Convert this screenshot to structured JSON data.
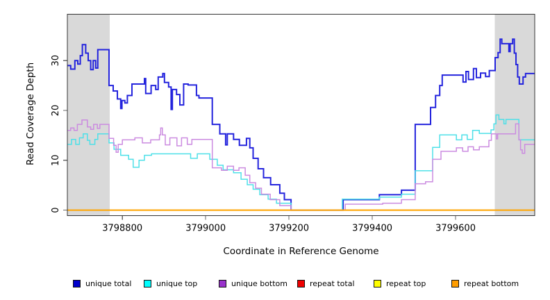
{
  "chart_data": {
    "type": "line",
    "style": "step-after",
    "title": "",
    "xlabel": "Coordinate in Reference Genome",
    "ylabel": "Read Coverage Depth",
    "xlim": [
      3798668,
      3799790
    ],
    "ylim": [
      -1.1,
      39.3
    ],
    "xticks": [
      3798800,
      3799000,
      3799200,
      3799400,
      3799600
    ],
    "yticks": [
      0,
      10,
      20,
      30
    ],
    "grid": false,
    "legend_position": "bottom",
    "box_color": "#333333",
    "tick_color": "#666666",
    "shade_color": "#d9d9d9",
    "shaded_regions": [
      {
        "x0": 3798668,
        "x1": 3798770
      },
      {
        "x0": 3799694,
        "x1": 3799790
      }
    ],
    "series": [
      {
        "name": "unique total",
        "color": "#2323dd",
        "legend_fill": "#0000cc",
        "line_width": 2,
        "points": [
          [
            3798668,
            29
          ],
          [
            3798676,
            28.3
          ],
          [
            3798686,
            30
          ],
          [
            3798693,
            29.3
          ],
          [
            3798699,
            31
          ],
          [
            3798704,
            33.2
          ],
          [
            3798712,
            31.5
          ],
          [
            3798718,
            30
          ],
          [
            3798724,
            28.2
          ],
          [
            3798730,
            30
          ],
          [
            3798736,
            28.5
          ],
          [
            3798741,
            32.2
          ],
          [
            3798768,
            25
          ],
          [
            3798778,
            23.9
          ],
          [
            3798788,
            22.3
          ],
          [
            3798796,
            20.4
          ],
          [
            3798799,
            22
          ],
          [
            3798806,
            21.5
          ],
          [
            3798812,
            23
          ],
          [
            3798823,
            25.3
          ],
          [
            3798853,
            26.4
          ],
          [
            3798856,
            23.4
          ],
          [
            3798869,
            25
          ],
          [
            3798880,
            24.2
          ],
          [
            3798886,
            26.7
          ],
          [
            3798897,
            27.4
          ],
          [
            3798901,
            25.6
          ],
          [
            3798911,
            24.7
          ],
          [
            3798917,
            20.2
          ],
          [
            3798920,
            24.2
          ],
          [
            3798930,
            23.2
          ],
          [
            3798938,
            21.1
          ],
          [
            3798947,
            25.3
          ],
          [
            3798958,
            25.1
          ],
          [
            3798978,
            23
          ],
          [
            3798984,
            22.5
          ],
          [
            3799016,
            17.2
          ],
          [
            3799034,
            15.3
          ],
          [
            3799048,
            13.1
          ],
          [
            3799052,
            15.3
          ],
          [
            3799067,
            14.2
          ],
          [
            3799081,
            13
          ],
          [
            3799098,
            14.4
          ],
          [
            3799106,
            12.5
          ],
          [
            3799114,
            10.4
          ],
          [
            3799126,
            8.3
          ],
          [
            3799139,
            6.5
          ],
          [
            3799156,
            5.1
          ],
          [
            3799178,
            3.4
          ],
          [
            3799189,
            2.1
          ],
          [
            3799205,
            0
          ],
          [
            3799330,
            2.1
          ],
          [
            3799417,
            3.1
          ],
          [
            3799470,
            4
          ],
          [
            3799503,
            17.2
          ],
          [
            3799540,
            20.6
          ],
          [
            3799552,
            23
          ],
          [
            3799562,
            25
          ],
          [
            3799568,
            27.1
          ],
          [
            3799618,
            25.7
          ],
          [
            3799625,
            27.8
          ],
          [
            3799631,
            26.2
          ],
          [
            3799643,
            28.4
          ],
          [
            3799650,
            26.6
          ],
          [
            3799660,
            27.5
          ],
          [
            3799672,
            26.8
          ],
          [
            3799681,
            28
          ],
          [
            3799695,
            30.6
          ],
          [
            3799702,
            31.6
          ],
          [
            3799707,
            34.3
          ],
          [
            3799711,
            33.4
          ],
          [
            3799728,
            31.8
          ],
          [
            3799731,
            33.4
          ],
          [
            3799737,
            34.3
          ],
          [
            3799741,
            31.5
          ],
          [
            3799745,
            29.2
          ],
          [
            3799749,
            26.7
          ],
          [
            3799753,
            25.3
          ],
          [
            3799762,
            26.7
          ],
          [
            3799768,
            27.4
          ],
          [
            3799790,
            27.4
          ]
        ]
      },
      {
        "name": "unique top",
        "color": "#4de0e8",
        "legend_fill": "#00ffff",
        "line_width": 1.5,
        "points": [
          [
            3798668,
            13.2
          ],
          [
            3798678,
            14.2
          ],
          [
            3798688,
            13.2
          ],
          [
            3798697,
            14.5
          ],
          [
            3798706,
            15.3
          ],
          [
            3798716,
            14
          ],
          [
            3798722,
            13.2
          ],
          [
            3798734,
            14.2
          ],
          [
            3798741,
            15.3
          ],
          [
            3798768,
            13.5
          ],
          [
            3798780,
            12.2
          ],
          [
            3798796,
            11
          ],
          [
            3798815,
            10.2
          ],
          [
            3798826,
            8.6
          ],
          [
            3798840,
            10
          ],
          [
            3798853,
            11
          ],
          [
            3798870,
            11.3
          ],
          [
            3798958,
            11.3
          ],
          [
            3798964,
            10.4
          ],
          [
            3798980,
            11.3
          ],
          [
            3799010,
            10.2
          ],
          [
            3799028,
            9
          ],
          [
            3799042,
            8.1
          ],
          [
            3799067,
            7.5
          ],
          [
            3799085,
            6.2
          ],
          [
            3799100,
            5.1
          ],
          [
            3799114,
            4.2
          ],
          [
            3799130,
            3.1
          ],
          [
            3799150,
            2.2
          ],
          [
            3799170,
            1.4
          ],
          [
            3799205,
            0
          ],
          [
            3799328,
            2.2
          ],
          [
            3799417,
            2.6
          ],
          [
            3799470,
            3.2
          ],
          [
            3799503,
            7.9
          ],
          [
            3799545,
            12.6
          ],
          [
            3799562,
            15.1
          ],
          [
            3799602,
            14.1
          ],
          [
            3799615,
            15.1
          ],
          [
            3799628,
            14.2
          ],
          [
            3799641,
            16
          ],
          [
            3799657,
            15.4
          ],
          [
            3799672,
            15.4
          ],
          [
            3799685,
            16.1
          ],
          [
            3799692,
            17.3
          ],
          [
            3799697,
            19.1
          ],
          [
            3799704,
            18.2
          ],
          [
            3799716,
            17.3
          ],
          [
            3799721,
            18.2
          ],
          [
            3799752,
            14.1
          ],
          [
            3799790,
            14.1
          ]
        ]
      },
      {
        "name": "unique bottom",
        "color": "#cb8be0",
        "legend_fill": "#9932cc",
        "line_width": 1.5,
        "points": [
          [
            3798668,
            16
          ],
          [
            3798676,
            16.5
          ],
          [
            3798684,
            16
          ],
          [
            3798692,
            17.2
          ],
          [
            3798703,
            18.1
          ],
          [
            3798716,
            16.7
          ],
          [
            3798724,
            16.2
          ],
          [
            3798731,
            17.2
          ],
          [
            3798740,
            16.4
          ],
          [
            3798746,
            17.2
          ],
          [
            3798768,
            14.4
          ],
          [
            3798779,
            13
          ],
          [
            3798785,
            11.6
          ],
          [
            3798790,
            13.2
          ],
          [
            3798800,
            14.1
          ],
          [
            3798830,
            14.5
          ],
          [
            3798848,
            13.5
          ],
          [
            3798868,
            14.1
          ],
          [
            3798889,
            15.1
          ],
          [
            3798892,
            16.5
          ],
          [
            3798896,
            15.1
          ],
          [
            3798903,
            13.1
          ],
          [
            3798914,
            14.5
          ],
          [
            3798931,
            12.9
          ],
          [
            3798942,
            14.5
          ],
          [
            3798956,
            13.2
          ],
          [
            3798967,
            14.2
          ],
          [
            3799016,
            8.5
          ],
          [
            3799038,
            8
          ],
          [
            3799052,
            8.8
          ],
          [
            3799067,
            8
          ],
          [
            3799080,
            8.5
          ],
          [
            3799095,
            7
          ],
          [
            3799106,
            5.5
          ],
          [
            3799120,
            4.4
          ],
          [
            3799134,
            3.2
          ],
          [
            3799155,
            2.1
          ],
          [
            3799178,
            0.9
          ],
          [
            3799205,
            0
          ],
          [
            3799335,
            1.2
          ],
          [
            3799425,
            1.4
          ],
          [
            3799470,
            2.1
          ],
          [
            3799503,
            5.3
          ],
          [
            3799528,
            5.7
          ],
          [
            3799545,
            10.2
          ],
          [
            3799565,
            11.8
          ],
          [
            3799602,
            12.5
          ],
          [
            3799617,
            11.8
          ],
          [
            3799630,
            12.7
          ],
          [
            3799643,
            12.1
          ],
          [
            3799657,
            12.7
          ],
          [
            3799680,
            14
          ],
          [
            3799686,
            15.3
          ],
          [
            3799698,
            14.3
          ],
          [
            3799701,
            15.3
          ],
          [
            3799744,
            17.3
          ],
          [
            3799752,
            14.1
          ],
          [
            3799756,
            12.1
          ],
          [
            3799760,
            11.4
          ],
          [
            3799766,
            13.2
          ],
          [
            3799790,
            13.2
          ]
        ]
      },
      {
        "name": "repeat total",
        "color": "#dd0000",
        "legend_fill": "#ee0000",
        "line_width": 1.5,
        "points": [
          [
            3798668,
            0
          ],
          [
            3799790,
            0
          ]
        ]
      },
      {
        "name": "repeat top",
        "color": "#ffff00",
        "legend_fill": "#ffff00",
        "line_width": 1.5,
        "points": [
          [
            3798668,
            0
          ],
          [
            3799790,
            0
          ]
        ]
      },
      {
        "name": "repeat bottom",
        "color": "#ffa500",
        "legend_fill": "#ff9d00",
        "line_width": 2,
        "points": [
          [
            3798668,
            0
          ],
          [
            3799790,
            0
          ]
        ]
      }
    ]
  }
}
